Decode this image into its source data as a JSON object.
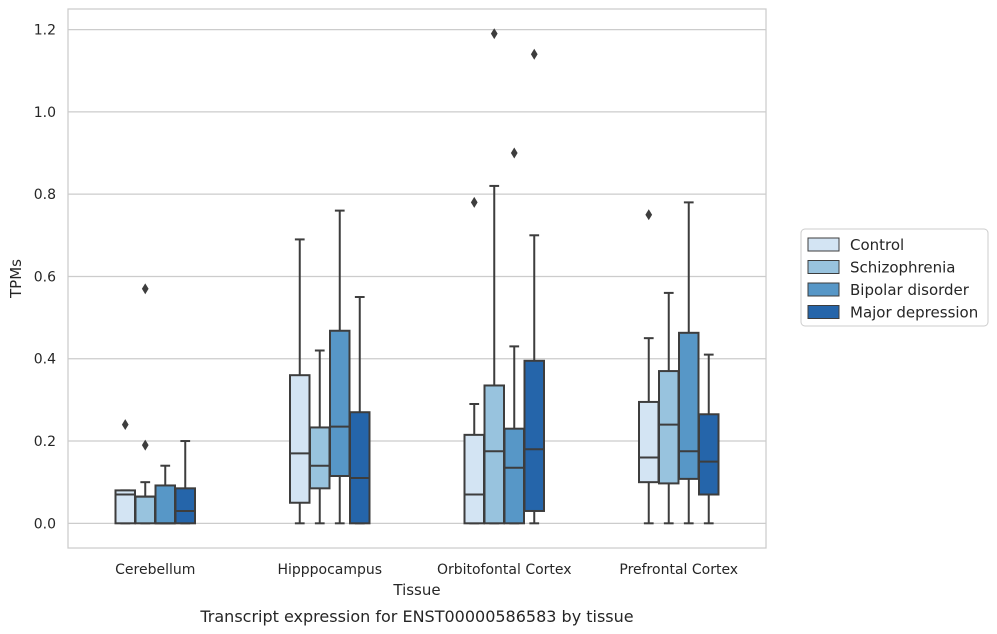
{
  "caption": "Transcript expression for ENST00000586583 by tissue",
  "colors": {
    "Control": "#d3e4f3",
    "Schizophrenia": "#98c3de",
    "Bipolar disorder": "#5797c7",
    "Major depression": "#2565aa",
    "grid": "#cccccc",
    "edge": "#3d3d3d"
  },
  "chart_data": {
    "type": "box",
    "xlabel": "Tissue",
    "ylabel": "TPMs",
    "ylim": [
      -0.06,
      1.25
    ],
    "yticks": [
      0.0,
      0.2,
      0.4,
      0.6,
      0.8,
      1.0,
      1.2
    ],
    "ytick_labels": [
      "0.0",
      "0.2",
      "0.4",
      "0.6",
      "0.8",
      "1.0",
      "1.2"
    ],
    "grid": true,
    "legend_position": "right",
    "categories": [
      "Cerebellum",
      "Hipppocampus",
      "Orbitofontal Cortex",
      "Prefrontal Cortex"
    ],
    "series": [
      {
        "name": "Control",
        "boxes": [
          {
            "whislo": 0.0,
            "q1": 0.0,
            "med": 0.07,
            "q3": 0.08,
            "whishi": 0.08,
            "fliers": [
              0.24
            ]
          },
          {
            "whislo": 0.0,
            "q1": 0.05,
            "med": 0.17,
            "q3": 0.36,
            "whishi": 0.69,
            "fliers": []
          },
          {
            "whislo": 0.0,
            "q1": 0.0,
            "med": 0.07,
            "q3": 0.215,
            "whishi": 0.29,
            "fliers": [
              0.78
            ]
          },
          {
            "whislo": 0.0,
            "q1": 0.1,
            "med": 0.16,
            "q3": 0.295,
            "whishi": 0.45,
            "fliers": [
              0.75
            ]
          }
        ]
      },
      {
        "name": "Schizophrenia",
        "boxes": [
          {
            "whislo": 0.0,
            "q1": 0.0,
            "med": 0.065,
            "q3": 0.065,
            "whishi": 0.1,
            "fliers": [
              0.19,
              0.57
            ]
          },
          {
            "whislo": 0.0,
            "q1": 0.085,
            "med": 0.14,
            "q3": 0.233,
            "whishi": 0.42,
            "fliers": []
          },
          {
            "whislo": 0.0,
            "q1": 0.0,
            "med": 0.175,
            "q3": 0.335,
            "whishi": 0.82,
            "fliers": [
              1.19
            ]
          },
          {
            "whislo": 0.0,
            "q1": 0.097,
            "med": 0.24,
            "q3": 0.37,
            "whishi": 0.56,
            "fliers": []
          }
        ]
      },
      {
        "name": "Bipolar disorder",
        "boxes": [
          {
            "whislo": 0.0,
            "q1": 0.0,
            "med": 0.0,
            "q3": 0.092,
            "whishi": 0.14,
            "fliers": []
          },
          {
            "whislo": 0.0,
            "q1": 0.115,
            "med": 0.235,
            "q3": 0.468,
            "whishi": 0.76,
            "fliers": []
          },
          {
            "whislo": 0.0,
            "q1": 0.0,
            "med": 0.135,
            "q3": 0.23,
            "whishi": 0.43,
            "fliers": [
              0.9
            ]
          },
          {
            "whislo": 0.0,
            "q1": 0.108,
            "med": 0.175,
            "q3": 0.463,
            "whishi": 0.78,
            "fliers": []
          }
        ]
      },
      {
        "name": "Major depression",
        "boxes": [
          {
            "whislo": 0.0,
            "q1": 0.0,
            "med": 0.03,
            "q3": 0.085,
            "whishi": 0.2,
            "fliers": []
          },
          {
            "whislo": 0.0,
            "q1": 0.0,
            "med": 0.11,
            "q3": 0.27,
            "whishi": 0.55,
            "fliers": []
          },
          {
            "whislo": 0.0,
            "q1": 0.03,
            "med": 0.18,
            "q3": 0.395,
            "whishi": 0.7,
            "fliers": [
              1.14
            ]
          },
          {
            "whislo": 0.0,
            "q1": 0.07,
            "med": 0.15,
            "q3": 0.265,
            "whishi": 0.41,
            "fliers": []
          }
        ]
      }
    ]
  }
}
